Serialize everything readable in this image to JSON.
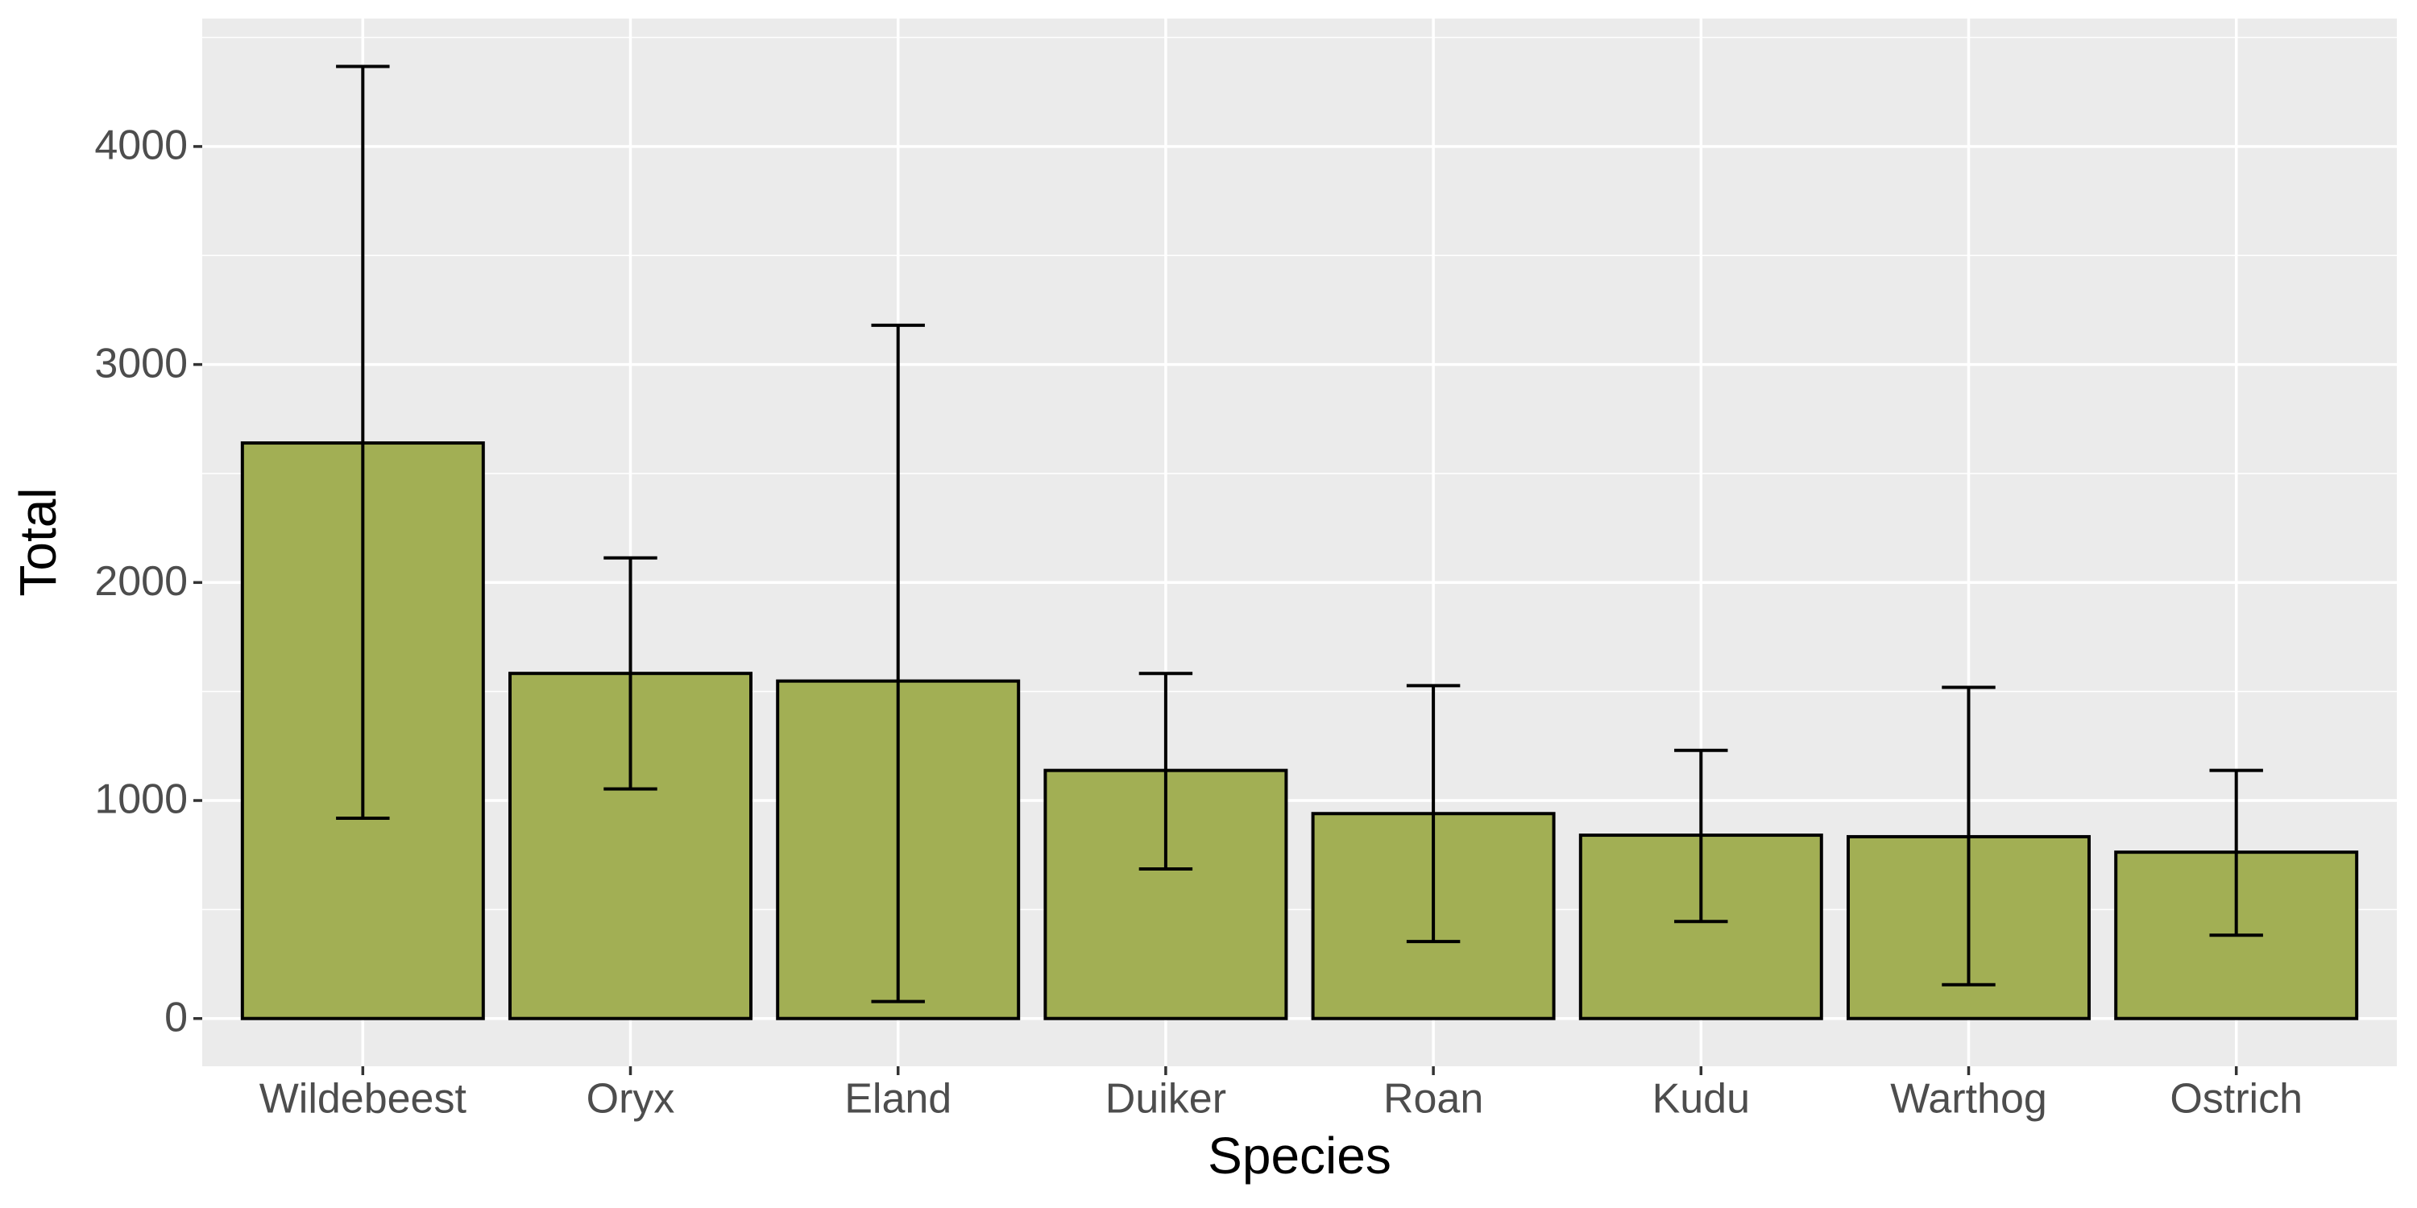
{
  "chart_data": {
    "type": "bar",
    "x_label": "Species",
    "y_label": "Total",
    "categories": [
      "Wildebeest",
      "Oryx",
      "Eland",
      "Duiker",
      "Roan",
      "Kudu",
      "Warthog",
      "Ostrich"
    ],
    "values": [
      2640,
      1583,
      1548,
      1138,
      940,
      841,
      834,
      763
    ],
    "error_low": [
      919,
      1053,
      78,
      686,
      353,
      445,
      155,
      382
    ],
    "error_high": [
      4367,
      2113,
      3180,
      1583,
      1527,
      1230,
      1519,
      1138
    ],
    "color": "#a2af54",
    "ylim": [
      -219,
      4587
    ],
    "yticks": [
      0,
      1000,
      2000,
      3000,
      4000
    ],
    "minor_yticks": [
      500,
      1500,
      2500,
      3500,
      4500
    ],
    "grid": true
  }
}
